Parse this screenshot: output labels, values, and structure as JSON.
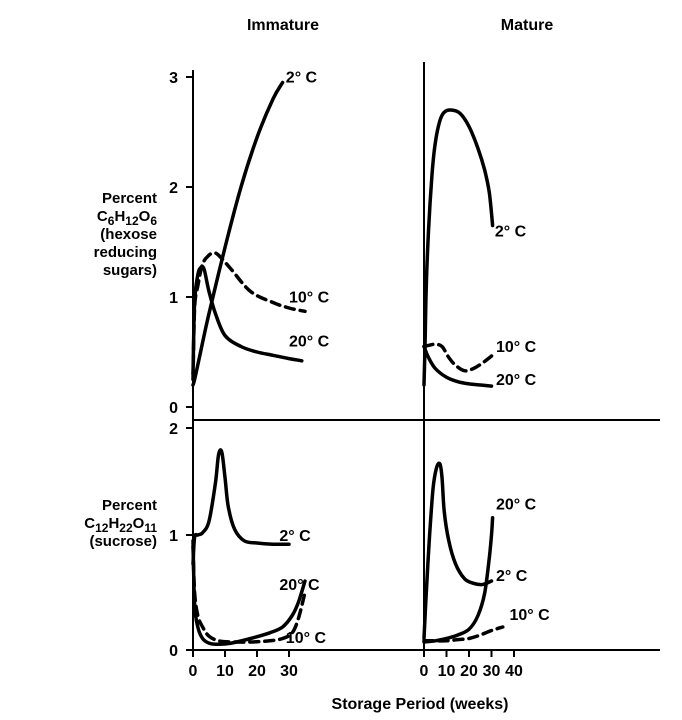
{
  "chart_data": {
    "type": "line",
    "xlabel": "Storage Period (weeks)",
    "columns": [
      {
        "key": "immature",
        "title": "Immature",
        "xticks": [
          "0",
          "10",
          "20",
          "30"
        ],
        "xlim": [
          0,
          37
        ]
      },
      {
        "key": "mature",
        "title": "Mature",
        "xticks": [
          "0",
          "10",
          "20",
          "30",
          "40"
        ],
        "xlim": [
          0,
          42
        ]
      }
    ],
    "rows": [
      {
        "key": "hexose",
        "ylabel_lines": [
          "Percent",
          "C6H12O6",
          "(hexose",
          "reducing",
          "sugars)"
        ],
        "yticks": [
          "0",
          "1",
          "2",
          "3"
        ],
        "ylim": [
          0,
          3.05
        ]
      },
      {
        "key": "sucrose",
        "ylabel_lines": [
          "Percent",
          "C12H22O11",
          "(sucrose)"
        ],
        "yticks": [
          "0",
          "1",
          "2"
        ],
        "ylim": [
          0,
          2
        ]
      }
    ],
    "panels": [
      {
        "column": "immature",
        "row": "hexose",
        "series": [
          {
            "name": "2° C",
            "dashed": false,
            "label_at": [
              29,
              2.95
            ],
            "x": [
              0,
              0.5,
              2,
              5,
              10,
              15,
              20,
              25,
              28
            ],
            "y": [
              0.2,
              0.25,
              0.45,
              0.85,
              1.45,
              2.0,
              2.45,
              2.8,
              2.95
            ]
          },
          {
            "name": "10° C",
            "dashed": true,
            "label_at": [
              30,
              0.95
            ],
            "x": [
              0,
              0.5,
              1.5,
              3,
              5,
              6.5,
              8,
              12,
              18,
              25,
              30,
              35
            ],
            "y": [
              0.25,
              0.9,
              1.1,
              1.3,
              1.38,
              1.4,
              1.38,
              1.25,
              1.05,
              0.95,
              0.9,
              0.87
            ]
          },
          {
            "name": "20° C",
            "dashed": false,
            "label_at": [
              30,
              0.55
            ],
            "x": [
              0,
              0.5,
              1.5,
              2.5,
              3.5,
              5,
              7,
              10,
              15,
              20,
              25,
              30,
              34
            ],
            "y": [
              0.3,
              0.95,
              1.2,
              1.27,
              1.25,
              1.05,
              0.85,
              0.65,
              0.55,
              0.5,
              0.47,
              0.44,
              0.42
            ]
          }
        ]
      },
      {
        "column": "mature",
        "row": "hexose",
        "series": [
          {
            "name": "2° C",
            "dashed": false,
            "label_at": [
              31.5,
              1.55
            ],
            "x": [
              0,
              0.5,
              1,
              2,
              3.5,
              5,
              7,
              9,
              12,
              16,
              20,
              24,
              27,
              29,
              30.5
            ],
            "y": [
              0.2,
              0.6,
              1.1,
              1.6,
              2.1,
              2.4,
              2.6,
              2.68,
              2.7,
              2.67,
              2.55,
              2.35,
              2.15,
              1.95,
              1.65
            ]
          },
          {
            "name": "10° C",
            "dashed": true,
            "label_at": [
              32,
              0.5
            ],
            "x": [
              0,
              2,
              5,
              8,
              11,
              14,
              18,
              22,
              26,
              31
            ],
            "y": [
              0.55,
              0.56,
              0.57,
              0.55,
              0.45,
              0.38,
              0.33,
              0.35,
              0.4,
              0.48
            ]
          },
          {
            "name": "20° C",
            "dashed": false,
            "label_at": [
              32,
              0.2
            ],
            "x": [
              0,
              2,
              5,
              10,
              15,
              20,
              25,
              30
            ],
            "y": [
              0.55,
              0.45,
              0.35,
              0.27,
              0.23,
              0.21,
              0.2,
              0.19
            ]
          }
        ]
      },
      {
        "column": "immature",
        "row": "sucrose",
        "series": [
          {
            "name": "2° C",
            "dashed": false,
            "label_at": [
              27,
              0.95
            ],
            "x": [
              0,
              0.5,
              1.5,
              3,
              5,
              7,
              8,
              9,
              10,
              11,
              13,
              16,
              20,
              25,
              30
            ],
            "y": [
              0.75,
              0.98,
              1.0,
              1.02,
              1.12,
              1.45,
              1.7,
              1.72,
              1.5,
              1.25,
              1.05,
              0.95,
              0.93,
              0.92,
              0.92
            ]
          },
          {
            "name": "20° C",
            "dashed": false,
            "label_at": [
              27,
              0.52
            ],
            "x": [
              0,
              0.5,
              1.5,
              3,
              5,
              8,
              12,
              18,
              24,
              28,
              31,
              33,
              35
            ],
            "y": [
              0.95,
              0.4,
              0.2,
              0.1,
              0.06,
              0.05,
              0.06,
              0.1,
              0.15,
              0.2,
              0.3,
              0.42,
              0.6
            ]
          },
          {
            "name": "10° C",
            "dashed": true,
            "label_at": [
              29,
              0.06
            ],
            "x": [
              0,
              0.5,
              1.5,
              3,
              5,
              8,
              12,
              18,
              24,
              28,
              31,
              33,
              35
            ],
            "y": [
              0.9,
              0.5,
              0.3,
              0.2,
              0.12,
              0.08,
              0.07,
              0.07,
              0.08,
              0.1,
              0.15,
              0.28,
              0.5
            ]
          }
        ]
      },
      {
        "column": "mature",
        "row": "sucrose",
        "series": [
          {
            "name": "20° C",
            "dashed": false,
            "label_at": [
              32,
              1.22
            ],
            "x": [
              0,
              5,
              10,
              15,
              20,
              24,
              27,
              29,
              30,
              30.5
            ],
            "y": [
              0.07,
              0.08,
              0.1,
              0.13,
              0.18,
              0.3,
              0.5,
              0.8,
              1.0,
              1.15
            ]
          },
          {
            "name": "2° C",
            "dashed": false,
            "label_at": [
              32,
              0.6
            ],
            "x": [
              0,
              1,
              2.5,
              4,
              5.5,
              7,
              8,
              9,
              11,
              14,
              18,
              22,
              26,
              30
            ],
            "y": [
              0.1,
              0.5,
              1.0,
              1.4,
              1.58,
              1.62,
              1.5,
              1.2,
              0.95,
              0.75,
              0.62,
              0.58,
              0.57,
              0.6
            ]
          },
          {
            "name": "10° C",
            "dashed": true,
            "label_at": [
              38,
              0.26
            ],
            "x": [
              0,
              5,
              10,
              15,
              20,
              25,
              30,
              35
            ],
            "y": [
              0.08,
              0.08,
              0.08,
              0.09,
              0.1,
              0.13,
              0.17,
              0.2
            ]
          }
        ]
      }
    ]
  }
}
